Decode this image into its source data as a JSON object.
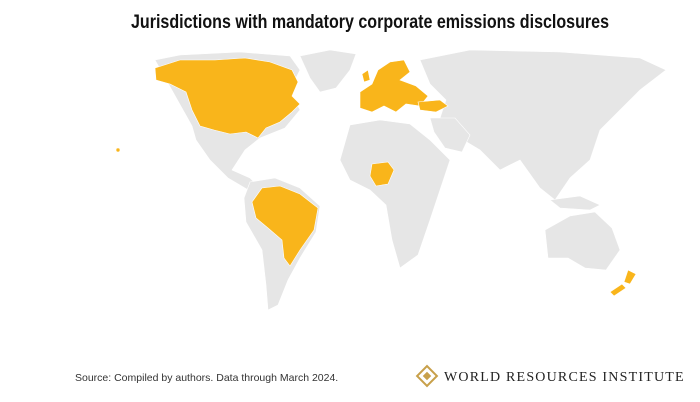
{
  "header": {
    "title": "Jurisdictions with mandatory corporate emissions disclosures"
  },
  "footer": {
    "source": "Source: Compiled by authors. Data through March 2024.",
    "logo": "WORLD RESOURCES INSTITUTE"
  }
}
